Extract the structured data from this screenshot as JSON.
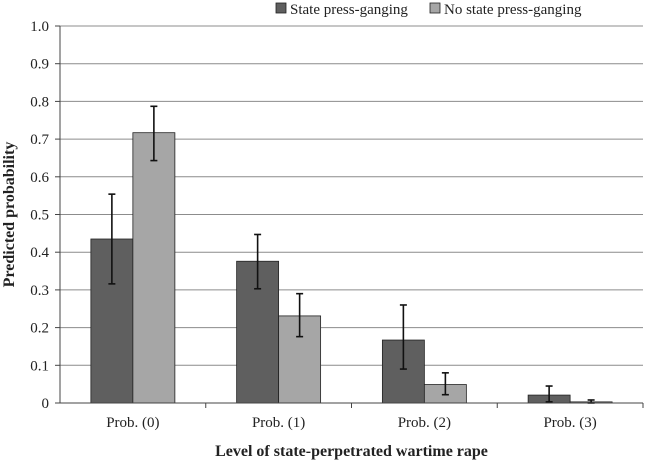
{
  "chart_data": {
    "type": "bar",
    "title": "",
    "xlabel": "Level of state-perpetrated wartime rape",
    "ylabel": "Predicted probability",
    "categories": [
      "Prob. (0)",
      "Prob. (1)",
      "Prob. (2)",
      "Prob. (3)"
    ],
    "series": [
      {
        "name": "State press-ganging",
        "color": "#5f5f5f",
        "values": [
          0.435,
          0.376,
          0.167,
          0.021
        ],
        "error_low": [
          0.316,
          0.303,
          0.09,
          0.003
        ],
        "error_high": [
          0.554,
          0.447,
          0.26,
          0.045
        ]
      },
      {
        "name": "No state press-ganging",
        "color": "#a6a6a6",
        "values": [
          0.717,
          0.231,
          0.049,
          0.003
        ],
        "error_low": [
          0.643,
          0.176,
          0.022,
          0.0
        ],
        "error_high": [
          0.787,
          0.29,
          0.08,
          0.008
        ]
      }
    ],
    "ylim": [
      0,
      1.0
    ],
    "yticks": [
      "0",
      "0.1",
      "0.2",
      "0.3",
      "0.4",
      "0.5",
      "0.6",
      "0.7",
      "0.8",
      "0.9",
      "1.0"
    ],
    "grid": true,
    "legend_position": "top-right"
  }
}
